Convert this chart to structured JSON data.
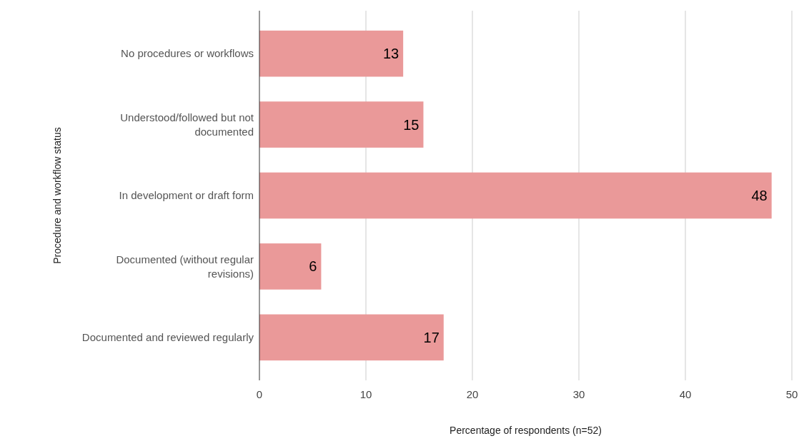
{
  "chart_data": {
    "type": "bar",
    "orientation": "horizontal",
    "xlabel": "Percentage of respondents (n=52)",
    "ylabel": "Procedure and workflow status",
    "categories": [
      "No procedures or workflows",
      "Understood/followed but not documented",
      "In development or draft form",
      "Documented (without regular revisions)",
      "Documented and reviewed regularly"
    ],
    "values": [
      13.5,
      15.4,
      48.1,
      5.8,
      17.3
    ],
    "value_labels": [
      "13",
      "15",
      "48",
      "6",
      "17"
    ],
    "color": "#ea9999",
    "xlim": [
      0,
      50
    ],
    "xticks": [
      0,
      10,
      20,
      30,
      40,
      50
    ],
    "grid": "x"
  }
}
